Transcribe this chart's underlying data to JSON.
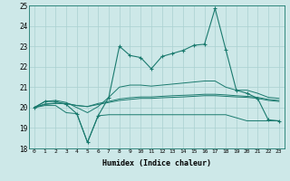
{
  "xlabel": "Humidex (Indice chaleur)",
  "x": [
    0,
    1,
    2,
    3,
    4,
    5,
    6,
    7,
    8,
    9,
    10,
    11,
    12,
    13,
    14,
    15,
    16,
    17,
    18,
    19,
    20,
    21,
    22,
    23
  ],
  "line_main": [
    20.0,
    20.3,
    20.3,
    20.15,
    19.7,
    18.3,
    19.6,
    20.5,
    23.0,
    22.55,
    22.45,
    21.9,
    22.5,
    22.65,
    22.8,
    23.05,
    23.1,
    24.85,
    22.85,
    20.85,
    20.7,
    20.45,
    19.4,
    19.35
  ],
  "line_upper": [
    20.0,
    20.3,
    20.35,
    20.25,
    20.0,
    19.75,
    20.05,
    20.5,
    21.0,
    21.1,
    21.1,
    21.05,
    21.1,
    21.15,
    21.2,
    21.25,
    21.3,
    21.3,
    21.0,
    20.85,
    20.85,
    20.7,
    20.5,
    20.45
  ],
  "line_lower": [
    20.0,
    20.1,
    20.1,
    19.75,
    19.7,
    18.3,
    19.6,
    19.65,
    19.65,
    19.65,
    19.65,
    19.65,
    19.65,
    19.65,
    19.65,
    19.65,
    19.65,
    19.65,
    19.65,
    19.5,
    19.35,
    19.35,
    19.35,
    19.35
  ],
  "line_mid1": [
    20.0,
    20.15,
    20.2,
    20.2,
    20.1,
    20.05,
    20.15,
    20.25,
    20.35,
    20.4,
    20.45,
    20.45,
    20.48,
    20.5,
    20.52,
    20.55,
    20.58,
    20.58,
    20.55,
    20.52,
    20.5,
    20.45,
    20.35,
    20.3
  ],
  "line_mid2": [
    20.0,
    20.18,
    20.22,
    20.2,
    20.1,
    20.05,
    20.2,
    20.3,
    20.42,
    20.48,
    20.52,
    20.52,
    20.55,
    20.58,
    20.6,
    20.62,
    20.65,
    20.65,
    20.62,
    20.58,
    20.55,
    20.5,
    20.4,
    20.35
  ],
  "color": "#1a7a6e",
  "bg_color": "#cde8e8",
  "grid_color": "#aad0d0",
  "ylim": [
    18,
    25
  ],
  "yticks": [
    18,
    19,
    20,
    21,
    22,
    23,
    24,
    25
  ],
  "xticks": [
    0,
    1,
    2,
    3,
    4,
    5,
    6,
    7,
    8,
    9,
    10,
    11,
    12,
    13,
    14,
    15,
    16,
    17,
    18,
    19,
    20,
    21,
    22,
    23
  ]
}
